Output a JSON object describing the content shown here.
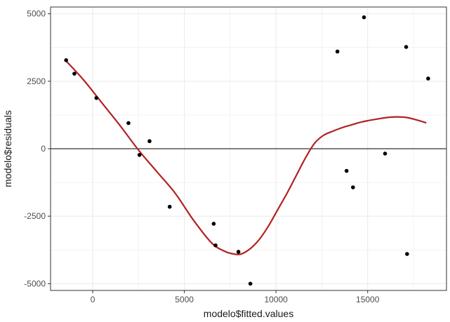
{
  "chart_data": {
    "type": "scatter",
    "title": "",
    "xlabel": "modelo$fitted.values",
    "ylabel": "modelo$residuals",
    "xlim": [
      -2300,
      19300
    ],
    "ylim": [
      -5250,
      5250
    ],
    "x_ticks": [
      0,
      5000,
      10000,
      15000
    ],
    "y_ticks": [
      -5000,
      -2500,
      0,
      2500,
      5000
    ],
    "x_tick_labels": [
      "0",
      "5000",
      "10000",
      "15000"
    ],
    "y_tick_labels": [
      "-5000",
      "-2500",
      "0",
      "2500",
      "5000"
    ],
    "grid": true,
    "hline": 0,
    "colors": {
      "points": "#000000",
      "smooth": "#b22222",
      "grid": "#ebebeb",
      "hline": "#000000"
    },
    "points": [
      {
        "x": -1450,
        "y": 3280
      },
      {
        "x": -1000,
        "y": 2780
      },
      {
        "x": 200,
        "y": 1880
      },
      {
        "x": 1950,
        "y": 950
      },
      {
        "x": 2550,
        "y": -230
      },
      {
        "x": 3100,
        "y": 280
      },
      {
        "x": 4200,
        "y": -2150
      },
      {
        "x": 6600,
        "y": -2780
      },
      {
        "x": 6700,
        "y": -3580
      },
      {
        "x": 7950,
        "y": -3820
      },
      {
        "x": 8600,
        "y": -5000
      },
      {
        "x": 13350,
        "y": 3600
      },
      {
        "x": 13850,
        "y": -820
      },
      {
        "x": 14200,
        "y": -1430
      },
      {
        "x": 14800,
        "y": 4870
      },
      {
        "x": 15950,
        "y": -180
      },
      {
        "x": 17100,
        "y": 3770
      },
      {
        "x": 17150,
        "y": -3900
      },
      {
        "x": 18300,
        "y": 2600
      }
    ],
    "smooth_line": {
      "x": [
        -1450,
        -500,
        500,
        1500,
        2500,
        3500,
        4500,
        5500,
        6500,
        7200,
        7700,
        8100,
        8600,
        9100,
        9600,
        10100,
        10600,
        11100,
        11600,
        12100,
        12600,
        13100,
        13600,
        14100,
        14600,
        15100,
        15600,
        16100,
        16600,
        17100,
        17600,
        18200
      ],
      "y": [
        3250,
        2550,
        1700,
        850,
        -50,
        -850,
        -1650,
        -2650,
        -3500,
        -3800,
        -3900,
        -3900,
        -3700,
        -3350,
        -2850,
        -2250,
        -1650,
        -1000,
        -350,
        200,
        500,
        650,
        780,
        880,
        980,
        1050,
        1110,
        1160,
        1180,
        1160,
        1080,
        960
      ]
    }
  }
}
